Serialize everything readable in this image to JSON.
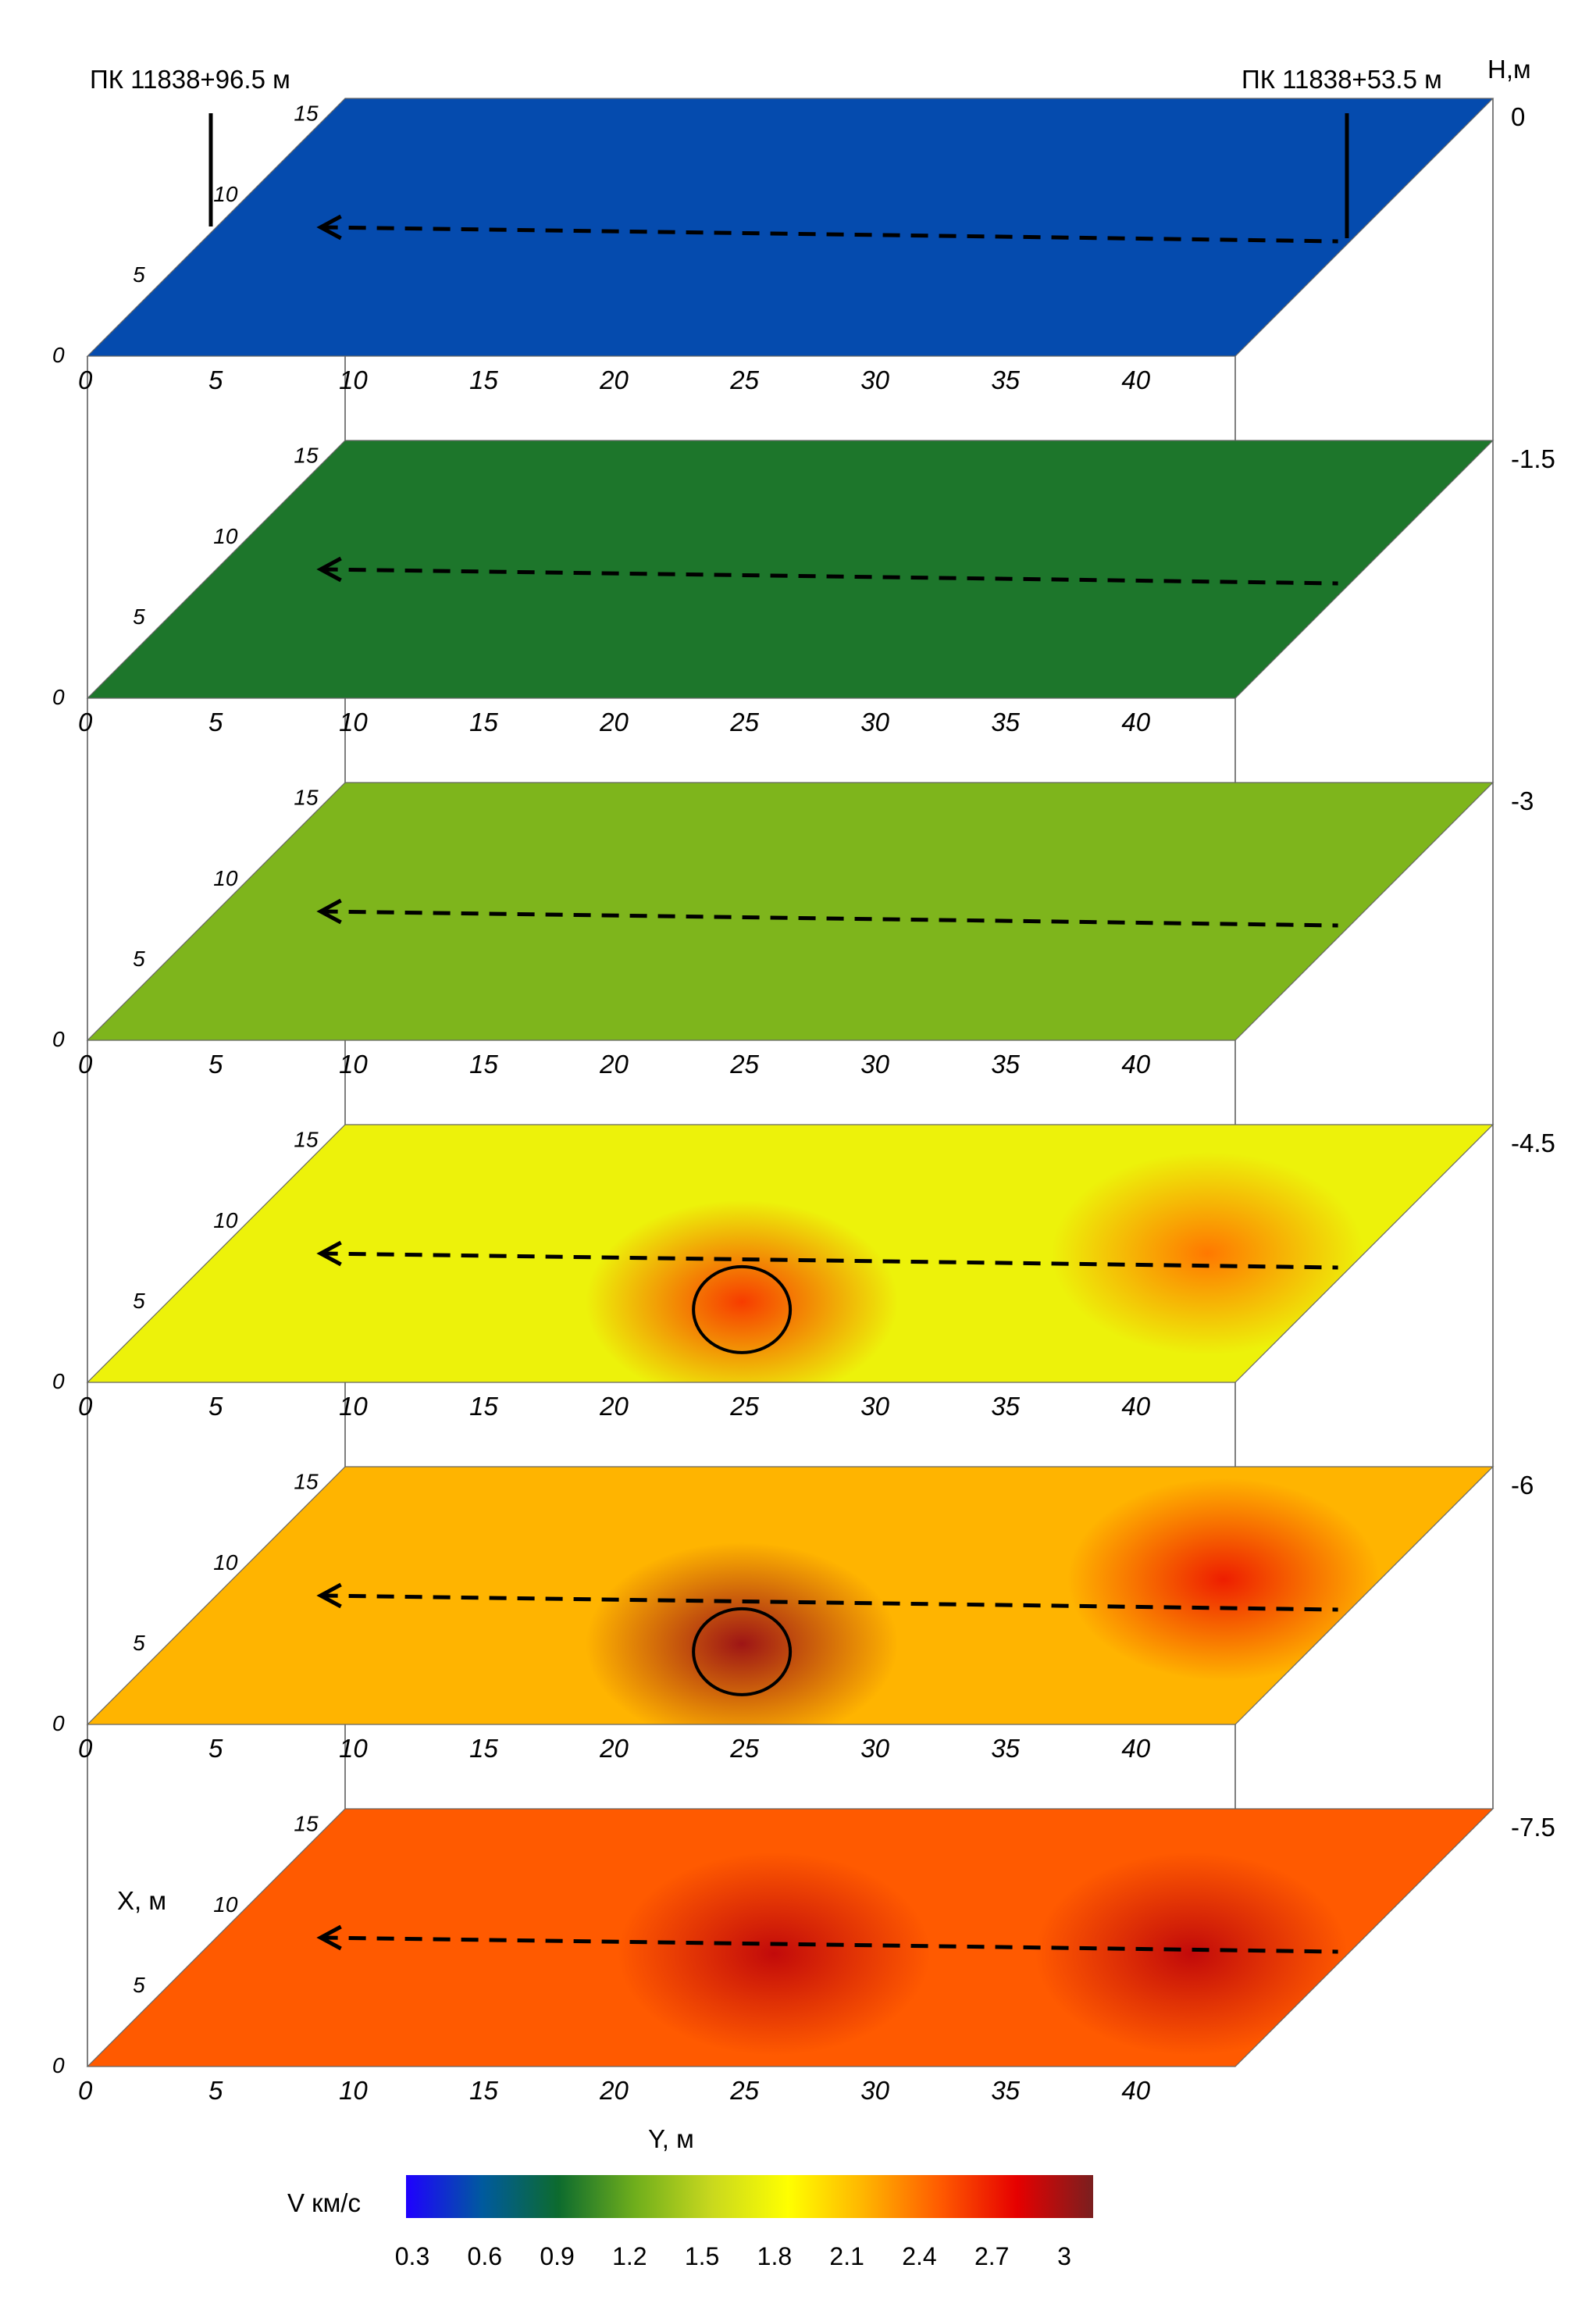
{
  "chart_data": {
    "type": "heatmap",
    "title": "",
    "xlabel": "Y, м",
    "ylabel": "X, м",
    "zlabel": "H,м",
    "colorbar_label": "V км/с",
    "x_range": [
      0,
      44
    ],
    "y_range": [
      0,
      16
    ],
    "x_ticks": [
      "0",
      "5",
      "10",
      "15",
      "20",
      "25",
      "30",
      "35",
      "40"
    ],
    "y_ticks": [
      "0",
      "5",
      "10",
      "15"
    ],
    "colorbar_ticks": [
      "0.3",
      "0.6",
      "0.9",
      "1.2",
      "1.5",
      "1.8",
      "2.1",
      "2.4",
      "2.7",
      "3"
    ],
    "colorbar_range": [
      0.3,
      3.0
    ],
    "colors": [
      "#1f00ff",
      "#005a9e",
      "#0d6b2e",
      "#6fae1c",
      "#c8d81e",
      "#ffff00",
      "#ffb400",
      "#ff5a00",
      "#e60000",
      "#7a1f1f"
    ],
    "annotations": {
      "left_marker": "ПК 11838+96.5 м",
      "right_marker": "ПК 11838+53.5 м"
    },
    "layers": [
      {
        "depth": "0",
        "mean_velocity": 0.55,
        "hotspots": []
      },
      {
        "depth": "-1.5",
        "mean_velocity": 0.95,
        "hotspots": []
      },
      {
        "depth": "-3",
        "mean_velocity": 1.25,
        "hotspots": []
      },
      {
        "depth": "-4.5",
        "mean_velocity": 1.7,
        "hotspots": [
          {
            "y": 22,
            "x": 5,
            "v": 2.5
          },
          {
            "y": 38,
            "x": 8,
            "v": 2.3
          }
        ]
      },
      {
        "depth": "-6",
        "mean_velocity": 2.1,
        "hotspots": [
          {
            "y": 22,
            "x": 5,
            "v": 2.9
          },
          {
            "y": 38,
            "x": 9,
            "v": 2.6
          }
        ]
      },
      {
        "depth": "-7.5",
        "mean_velocity": 2.4,
        "hotspots": [
          {
            "y": 22,
            "x": 7,
            "v": 2.8
          },
          {
            "y": 38,
            "x": 7,
            "v": 2.8
          }
        ]
      }
    ]
  }
}
